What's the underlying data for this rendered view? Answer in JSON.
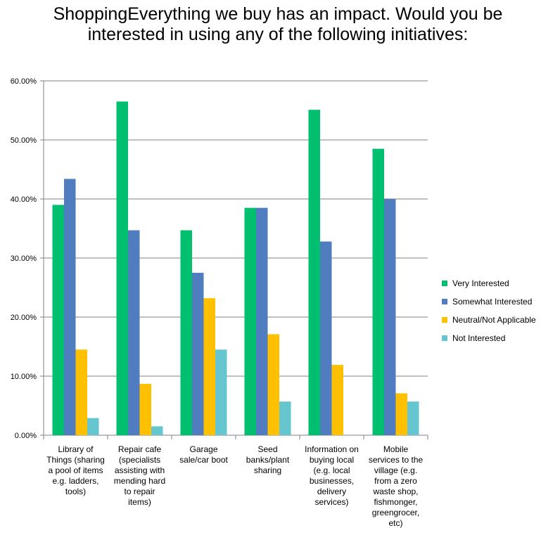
{
  "chart_data": {
    "type": "bar",
    "title": "ShoppingEverything we buy has an impact. Would you be interested in using any of the following initiatives:",
    "xlabel": "",
    "ylabel": "",
    "ylim": [
      0,
      0.6
    ],
    "yticks": [
      "0.00%",
      "10.00%",
      "20.00%",
      "30.00%",
      "40.00%",
      "50.00%",
      "60.00%"
    ],
    "grid": true,
    "legend_position": "right",
    "categories": [
      [
        "Library of",
        "Things (sharing",
        "a pool of items",
        "e.g. ladders,",
        "tools)"
      ],
      [
        "Repair cafe",
        "(specialists",
        "assisting with",
        "mending hard",
        "to repair",
        "items)"
      ],
      [
        "Garage",
        "sale/car boot"
      ],
      [
        "Seed",
        "banks/plant",
        "sharing"
      ],
      [
        "Information on",
        "buying local",
        "(e.g. local",
        "businesses,",
        "delivery",
        "services)"
      ],
      [
        "Mobile",
        "services to the",
        "village (e.g.",
        "from a zero",
        "waste shop,",
        "fishmonger,",
        "greengrocer,",
        "etc)"
      ]
    ],
    "series": [
      {
        "name": "Very Interested",
        "color": "#00c070",
        "values": [
          0.39,
          0.565,
          0.347,
          0.385,
          0.551,
          0.485
        ]
      },
      {
        "name": "Somewhat Interested",
        "color": "#4f7dbf",
        "values": [
          0.434,
          0.347,
          0.275,
          0.385,
          0.328,
          0.4
        ]
      },
      {
        "name": "Neutral/Not Applicable",
        "color": "#ffc000",
        "values": [
          0.145,
          0.087,
          0.232,
          0.171,
          0.119,
          0.071
        ]
      },
      {
        "name": "Not Interested",
        "color": "#66c6cf",
        "values": [
          0.029,
          0.015,
          0.145,
          0.057,
          0.0,
          0.057
        ]
      }
    ]
  }
}
